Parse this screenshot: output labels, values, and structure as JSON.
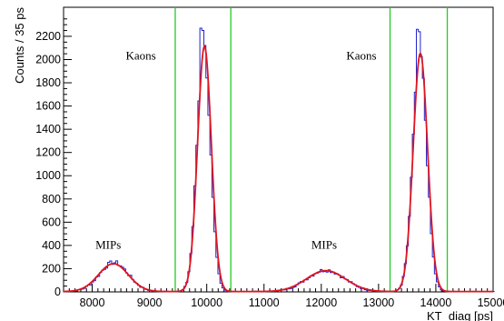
{
  "chart_data": {
    "type": "histogram",
    "xlabel": "KT_diag [ps]",
    "ylabel": "Counts / 35 ps",
    "xlim": [
      7500,
      15000
    ],
    "ylim": [
      0,
      2450
    ],
    "x_ticks": [
      8000,
      9000,
      10000,
      11000,
      12000,
      13000,
      14000,
      15000
    ],
    "y_ticks": [
      0,
      200,
      400,
      600,
      800,
      1000,
      1200,
      1400,
      1600,
      1800,
      2000,
      2200
    ],
    "bin_width_ps": 35,
    "series": [
      {
        "kind": "histogram",
        "color": "#2222cc",
        "peaks": [
          {
            "center": 8380,
            "sigma": 250,
            "height": 250
          },
          {
            "center": 9945,
            "sigma": 115,
            "height": 2130
          },
          {
            "center": 12080,
            "sigma": 330,
            "height": 185
          },
          {
            "center": 13720,
            "sigma": 120,
            "height": 2060
          }
        ],
        "spikes": [
          {
            "x": 9910,
            "y": 2270
          },
          {
            "x": 9945,
            "y": 2250
          },
          {
            "x": 13690,
            "y": 2260
          },
          {
            "x": 13725,
            "y": 2240
          }
        ]
      },
      {
        "kind": "fit",
        "color": "#e0141e",
        "peaks": [
          {
            "center": 8370,
            "sigma": 260,
            "height": 240
          },
          {
            "center": 9960,
            "sigma": 120,
            "height": 2110
          },
          {
            "center": 12080,
            "sigma": 340,
            "height": 180
          },
          {
            "center": 13730,
            "sigma": 125,
            "height": 2050
          }
        ]
      }
    ],
    "cut_lines": {
      "color": "#22cc22",
      "x": [
        9450,
        10420,
        13200,
        14200
      ]
    },
    "annotations": [
      {
        "text": "Kaons",
        "x": 8850,
        "y": 2000
      },
      {
        "text": "Kaons",
        "x": 12700,
        "y": 2000
      },
      {
        "text": "MIPs",
        "x": 8280,
        "y": 370
      },
      {
        "text": "MIPs",
        "x": 12050,
        "y": 370
      }
    ]
  }
}
